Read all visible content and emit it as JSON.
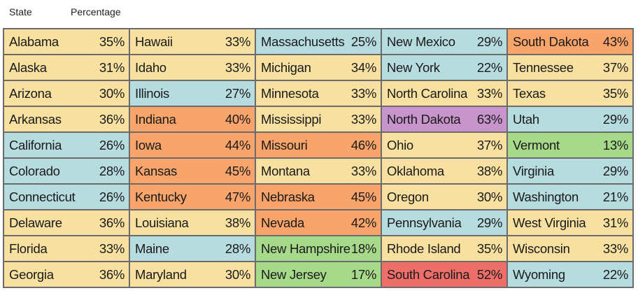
{
  "header": {
    "state_label": "State",
    "percentage_label": "Percentage"
  },
  "colors": {
    "yellow": "#f7e0a0",
    "blue": "#b7dcdf",
    "orange": "#f8a46b",
    "green": "#a7d98a",
    "purple": "#c795cc",
    "red": "#ee6f6a"
  },
  "chart_data": {
    "type": "table",
    "columns": [
      "State",
      "Percentage"
    ],
    "rows": [
      {
        "state": "Alabama",
        "percentage": "35%",
        "color": "yellow"
      },
      {
        "state": "Alaska",
        "percentage": "31%",
        "color": "yellow"
      },
      {
        "state": "Arizona",
        "percentage": "30%",
        "color": "yellow"
      },
      {
        "state": "Arkansas",
        "percentage": "36%",
        "color": "yellow"
      },
      {
        "state": "California",
        "percentage": "26%",
        "color": "blue"
      },
      {
        "state": "Colorado",
        "percentage": "28%",
        "color": "blue"
      },
      {
        "state": "Connecticut",
        "percentage": "26%",
        "color": "blue"
      },
      {
        "state": "Delaware",
        "percentage": "36%",
        "color": "yellow"
      },
      {
        "state": "Florida",
        "percentage": "33%",
        "color": "yellow"
      },
      {
        "state": "Georgia",
        "percentage": "36%",
        "color": "yellow"
      },
      {
        "state": "Hawaii",
        "percentage": "33%",
        "color": "yellow"
      },
      {
        "state": "Idaho",
        "percentage": "33%",
        "color": "yellow"
      },
      {
        "state": "Illinois",
        "percentage": "27%",
        "color": "blue"
      },
      {
        "state": "Indiana",
        "percentage": "40%",
        "color": "orange"
      },
      {
        "state": "Iowa",
        "percentage": "44%",
        "color": "orange"
      },
      {
        "state": "Kansas",
        "percentage": "45%",
        "color": "orange"
      },
      {
        "state": "Kentucky",
        "percentage": "47%",
        "color": "orange"
      },
      {
        "state": "Louisiana",
        "percentage": "38%",
        "color": "yellow"
      },
      {
        "state": "Maine",
        "percentage": "28%",
        "color": "blue"
      },
      {
        "state": "Maryland",
        "percentage": "30%",
        "color": "yellow"
      },
      {
        "state": "Massachusetts",
        "percentage": "25%",
        "color": "blue"
      },
      {
        "state": "Michigan",
        "percentage": "34%",
        "color": "yellow"
      },
      {
        "state": "Minnesota",
        "percentage": "33%",
        "color": "yellow"
      },
      {
        "state": "Mississippi",
        "percentage": "33%",
        "color": "yellow"
      },
      {
        "state": "Missouri",
        "percentage": "46%",
        "color": "orange"
      },
      {
        "state": "Montana",
        "percentage": "33%",
        "color": "yellow"
      },
      {
        "state": "Nebraska",
        "percentage": "45%",
        "color": "orange"
      },
      {
        "state": "Nevada",
        "percentage": "42%",
        "color": "orange"
      },
      {
        "state": "New Hampshire",
        "percentage": "18%",
        "color": "green"
      },
      {
        "state": "New Jersey",
        "percentage": "17%",
        "color": "green"
      },
      {
        "state": "New Mexico",
        "percentage": "29%",
        "color": "blue"
      },
      {
        "state": "New York",
        "percentage": "22%",
        "color": "blue"
      },
      {
        "state": "North Carolina",
        "percentage": "33%",
        "color": "yellow"
      },
      {
        "state": "North Dakota",
        "percentage": "63%",
        "color": "purple"
      },
      {
        "state": "Ohio",
        "percentage": "37%",
        "color": "yellow"
      },
      {
        "state": "Oklahoma",
        "percentage": "38%",
        "color": "yellow"
      },
      {
        "state": "Oregon",
        "percentage": "30%",
        "color": "yellow"
      },
      {
        "state": "Pennsylvania",
        "percentage": "29%",
        "color": "blue"
      },
      {
        "state": "Rhode Island",
        "percentage": "35%",
        "color": "yellow"
      },
      {
        "state": "South Carolina",
        "percentage": "52%",
        "color": "red"
      },
      {
        "state": "South Dakota",
        "percentage": "43%",
        "color": "orange"
      },
      {
        "state": "Tennessee",
        "percentage": "37%",
        "color": "yellow"
      },
      {
        "state": "Texas",
        "percentage": "35%",
        "color": "yellow"
      },
      {
        "state": "Utah",
        "percentage": "29%",
        "color": "blue"
      },
      {
        "state": "Vermont",
        "percentage": "13%",
        "color": "green"
      },
      {
        "state": "Virginia",
        "percentage": "29%",
        "color": "blue"
      },
      {
        "state": "Washington",
        "percentage": "21%",
        "color": "blue"
      },
      {
        "state": "West Virginia",
        "percentage": "31%",
        "color": "yellow"
      },
      {
        "state": "Wisconsin",
        "percentage": "33%",
        "color": "yellow"
      },
      {
        "state": "Wyoming",
        "percentage": "22%",
        "color": "blue"
      }
    ]
  }
}
